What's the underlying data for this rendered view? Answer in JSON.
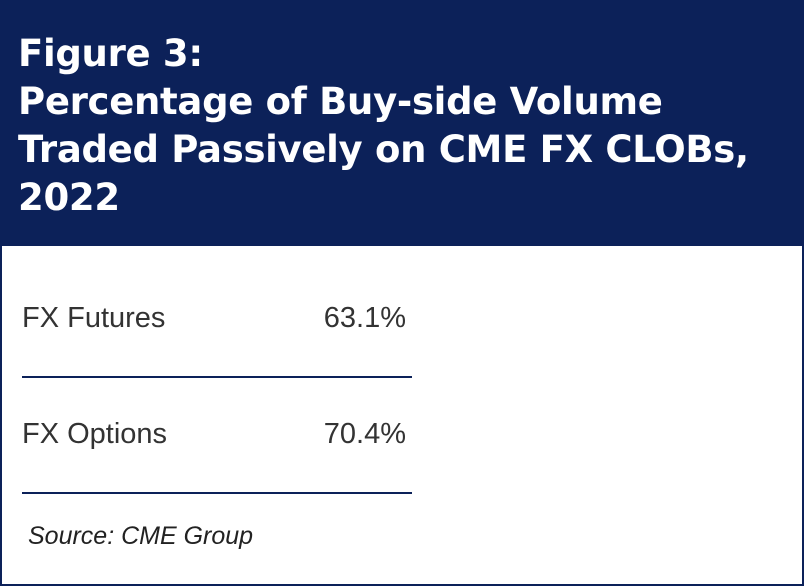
{
  "header": {
    "title_lines": [
      "Figure 3:",
      "Percentage of Buy-side Volume",
      "Traded Passively on CME FX CLOBs,",
      "2022"
    ]
  },
  "chart_data": {
    "type": "table",
    "title": "Figure 3: Percentage of Buy-side Volume Traded Passively on CME FX CLOBs, 2022",
    "rows": [
      {
        "label": "FX Futures",
        "value": 63.1,
        "display": "63.1%"
      },
      {
        "label": "FX Options",
        "value": 70.4,
        "display": "70.4%"
      }
    ],
    "unit": "%",
    "source": "Source: CME Group"
  },
  "colors": {
    "header_background": "#0c2159",
    "header_text": "#ffffff",
    "rule": "#0c2159",
    "body_text": "#333333"
  }
}
